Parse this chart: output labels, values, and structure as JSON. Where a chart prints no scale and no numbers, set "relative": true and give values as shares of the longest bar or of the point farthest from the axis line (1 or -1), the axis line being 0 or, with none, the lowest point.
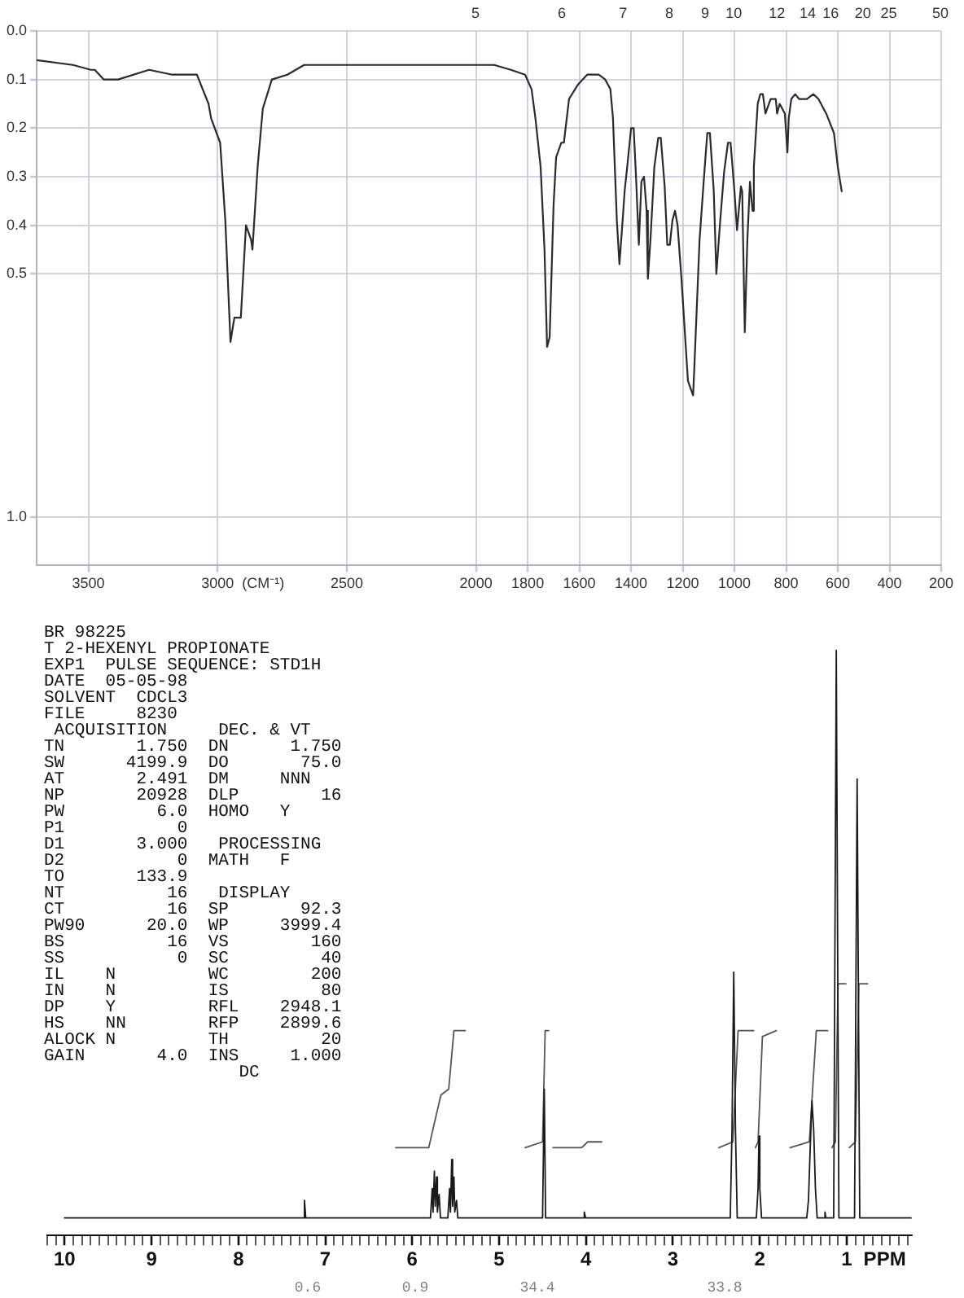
{
  "chart_data": [
    {
      "type": "line",
      "x": [
        3700,
        3560,
        3490,
        3475,
        3440,
        3385,
        3265,
        3175,
        3080,
        3035,
        3025,
        2990,
        2970,
        2950,
        2935,
        2910,
        2890,
        2870,
        2865,
        2845,
        2825,
        2790,
        2730,
        2665,
        2555,
        2385,
        2145,
        2010,
        1930,
        1865,
        1810,
        1785,
        1770,
        1750,
        1735,
        1725,
        1715,
        1700,
        1690,
        1670,
        1660,
        1640,
        1605,
        1570,
        1525,
        1500,
        1480,
        1470,
        1455,
        1445,
        1430,
        1425,
        1415,
        1400,
        1390,
        1380,
        1370,
        1360,
        1350,
        1340,
        1335,
        1325,
        1310,
        1295,
        1285,
        1270,
        1260,
        1250,
        1240,
        1230,
        1220,
        1205,
        1180,
        1160,
        1155,
        1135,
        1115,
        1105,
        1095,
        1080,
        1070,
        1055,
        1040,
        1025,
        1015,
        1000,
        990,
        975,
        970,
        960,
        950,
        940,
        930,
        925,
        910,
        900,
        890,
        880,
        860,
        840,
        835,
        825,
        805,
        795,
        790,
        780,
        765,
        750,
        730,
        720,
        695,
        675,
        645,
        615,
        600,
        585
      ],
      "values": [
        0.06,
        0.07,
        0.08,
        0.08,
        0.1,
        0.1,
        0.08,
        0.09,
        0.09,
        0.15,
        0.18,
        0.23,
        0.39,
        0.64,
        0.59,
        0.59,
        0.4,
        0.43,
        0.45,
        0.28,
        0.16,
        0.1,
        0.09,
        0.07,
        0.07,
        0.07,
        0.07,
        0.07,
        0.07,
        0.08,
        0.09,
        0.12,
        0.18,
        0.28,
        0.45,
        0.65,
        0.63,
        0.36,
        0.26,
        0.23,
        0.23,
        0.14,
        0.11,
        0.09,
        0.09,
        0.1,
        0.12,
        0.18,
        0.39,
        0.48,
        0.37,
        0.33,
        0.28,
        0.2,
        0.2,
        0.31,
        0.44,
        0.31,
        0.3,
        0.37,
        0.51,
        0.43,
        0.28,
        0.22,
        0.22,
        0.32,
        0.44,
        0.44,
        0.39,
        0.37,
        0.4,
        0.51,
        0.72,
        0.75,
        0.69,
        0.43,
        0.28,
        0.21,
        0.21,
        0.33,
        0.5,
        0.39,
        0.29,
        0.23,
        0.23,
        0.33,
        0.41,
        0.32,
        0.33,
        0.62,
        0.43,
        0.31,
        0.37,
        0.28,
        0.15,
        0.13,
        0.13,
        0.17,
        0.14,
        0.14,
        0.17,
        0.15,
        0.17,
        0.25,
        0.18,
        0.14,
        0.13,
        0.14,
        0.14,
        0.14,
        0.13,
        0.14,
        0.17,
        0.21,
        0.28,
        0.33
      ],
      "color": "#2b2b2b",
      "xlim": [
        3700,
        200
      ],
      "xticks": [
        3500,
        3000,
        2500,
        2000,
        1800,
        1600,
        1400,
        1200,
        1000,
        800,
        600,
        400,
        200
      ],
      "ylim": [
        1.1,
        0
      ],
      "yticks": [
        {
          "value": 0,
          "label": "0.0"
        },
        0.1,
        0.2,
        0.3,
        0.4,
        0.5,
        {
          "value": 1,
          "label": "1.0"
        }
      ],
      "xlabel": "(CM⁻¹)",
      "grid": true,
      "annotations": [
        "5",
        "6",
        "7",
        "8",
        "9",
        "10",
        "12",
        "14",
        "16",
        "20",
        "25",
        "50"
      ]
    },
    {
      "type": "line",
      "relative": true,
      "series": [
        {
          "color": "#1a1a1a",
          "x": [
            10.0,
            7.255,
            7.24,
            7.225,
            5.79,
            5.77,
            5.76,
            5.745,
            5.735,
            5.72,
            5.71,
            5.69,
            5.675,
            5.59,
            5.57,
            5.56,
            5.545,
            5.535,
            5.52,
            5.51,
            5.49,
            5.475,
            4.5,
            4.48,
            4.465,
            4.035,
            4.02,
            4.005,
            2.34,
            2.32,
            2.3,
            2.28,
            2.26,
            2.04,
            2.02,
            2.01,
            2.0,
            1.98,
            1.46,
            1.44,
            1.42,
            1.4,
            1.38,
            1.36,
            1.34,
            1.26,
            1.25,
            1.24,
            1.15,
            1.12,
            1.09,
            0.91,
            0.88,
            0.85,
            0.26
          ],
          "values": [
            0.03,
            0.03,
            0.06,
            0.03,
            0.03,
            0.08,
            0.04,
            0.11,
            0.05,
            0.1,
            0.04,
            0.07,
            0.03,
            0.03,
            0.08,
            0.04,
            0.13,
            0.05,
            0.1,
            0.04,
            0.06,
            0.03,
            0.03,
            0.25,
            0.03,
            0.03,
            0.04,
            0.03,
            0.03,
            0.18,
            0.45,
            0.18,
            0.03,
            0.03,
            0.08,
            0.17,
            0.08,
            0.03,
            0.03,
            0.06,
            0.15,
            0.23,
            0.18,
            0.08,
            0.03,
            0.03,
            0.04,
            0.03,
            0.03,
            1,
            0.03,
            0.03,
            0.78,
            0.03,
            0.03
          ]
        },
        {
          "color": "#555555",
          "x": [
            6.19,
            5.81,
            5.67,
            5.58,
            5.52,
            5.39,
            5.0,
            4.7,
            4.5,
            4.47,
            4.43,
            4.41,
            4.38,
            4.05,
            3.98,
            3.82,
            3.0,
            2.47,
            2.31,
            2.25,
            2.07,
            2.06,
            2.05,
            2.02,
            1.97,
            1.81,
            1.7,
            1.65,
            1.43,
            1.35,
            1.22,
            1.19,
            1.17,
            1.13,
            1.1,
            1.01,
            0.99,
            0.97,
            0.9,
            0.86,
            0.76
          ],
          "values": [
            0.15,
            0.15,
            0.24,
            0.25,
            0.35,
            0.35,
            null,
            0.15,
            0.16,
            0.35,
            0.35,
            null,
            0.15,
            0.15,
            0.16,
            0.16,
            null,
            0.15,
            0.16,
            0.35,
            0.35,
            null,
            0.15,
            0.16,
            0.34,
            0.35,
            null,
            0.15,
            0.16,
            0.35,
            0.35,
            null,
            0.15,
            0.16,
            0.43,
            0.43,
            null,
            0.15,
            0.16,
            0.43,
            0.43
          ]
        }
      ],
      "xlim": [
        10.2,
        0.25
      ],
      "xticks": [
        {
          "value": 10.2,
          "label": null
        },
        {
          "value": 10.1,
          "label": null
        },
        10,
        {
          "value": 9.9,
          "label": null
        },
        {
          "value": 9.8,
          "label": null
        },
        {
          "value": 9.7,
          "label": null
        },
        {
          "value": 9.6,
          "label": null
        },
        {
          "value": 9.5,
          "label": null
        },
        {
          "value": 9.4,
          "label": null
        },
        {
          "value": 9.3,
          "label": null
        },
        {
          "value": 9.2,
          "label": null
        },
        {
          "value": 9.1,
          "label": null
        },
        9,
        {
          "value": 8.9,
          "label": null
        },
        {
          "value": 8.8,
          "label": null
        },
        {
          "value": 8.7,
          "label": null
        },
        {
          "value": 8.6,
          "label": null
        },
        {
          "value": 8.5,
          "label": null
        },
        {
          "value": 8.4,
          "label": null
        },
        {
          "value": 8.3,
          "label": null
        },
        {
          "value": 8.2,
          "label": null
        },
        {
          "value": 8.1,
          "label": null
        },
        8,
        {
          "value": 7.9,
          "label": null
        },
        {
          "value": 7.8,
          "label": null
        },
        {
          "value": 7.7,
          "label": null
        },
        {
          "value": 7.6,
          "label": null
        },
        {
          "value": 7.5,
          "label": null
        },
        {
          "value": 7.4,
          "label": null
        },
        {
          "value": 7.3,
          "label": null
        },
        {
          "value": 7.2,
          "label": null
        },
        {
          "value": 7.1,
          "label": null
        },
        7,
        {
          "value": 6.9,
          "label": null
        },
        {
          "value": 6.8,
          "label": null
        },
        {
          "value": 6.7,
          "label": null
        },
        {
          "value": 6.6,
          "label": null
        },
        {
          "value": 6.5,
          "label": null
        },
        {
          "value": 6.4,
          "label": null
        },
        {
          "value": 6.3,
          "label": null
        },
        {
          "value": 6.2,
          "label": null
        },
        {
          "value": 6.1,
          "label": null
        },
        6,
        {
          "value": 5.9,
          "label": null
        },
        {
          "value": 5.8,
          "label": null
        },
        {
          "value": 5.7,
          "label": null
        },
        {
          "value": 5.6,
          "label": null
        },
        {
          "value": 5.5,
          "label": null
        },
        {
          "value": 5.4,
          "label": null
        },
        {
          "value": 5.3,
          "label": null
        },
        {
          "value": 5.2,
          "label": null
        },
        {
          "value": 5.1,
          "label": null
        },
        5,
        {
          "value": 4.9,
          "label": null
        },
        {
          "value": 4.8,
          "label": null
        },
        {
          "value": 4.7,
          "label": null
        },
        {
          "value": 4.6,
          "label": null
        },
        {
          "value": 4.5,
          "label": null
        },
        {
          "value": 4.4,
          "label": null
        },
        {
          "value": 4.3,
          "label": null
        },
        {
          "value": 4.2,
          "label": null
        },
        {
          "value": 4.1,
          "label": null
        },
        4,
        {
          "value": 3.9,
          "label": null
        },
        {
          "value": 3.8,
          "label": null
        },
        {
          "value": 3.7,
          "label": null
        },
        {
          "value": 3.6,
          "label": null
        },
        {
          "value": 3.5,
          "label": null
        },
        {
          "value": 3.4,
          "label": null
        },
        {
          "value": 3.3,
          "label": null
        },
        {
          "value": 3.2,
          "label": null
        },
        {
          "value": 3.1,
          "label": null
        },
        3,
        {
          "value": 2.9,
          "label": null
        },
        {
          "value": 2.8,
          "label": null
        },
        {
          "value": 2.7,
          "label": null
        },
        {
          "value": 2.6,
          "label": null
        },
        {
          "value": 2.5,
          "label": null
        },
        {
          "value": 2.4,
          "label": null
        },
        {
          "value": 2.3,
          "label": null
        },
        {
          "value": 2.2,
          "label": null
        },
        {
          "value": 2.1,
          "label": null
        },
        2,
        {
          "value": 1.9,
          "label": null
        },
        {
          "value": 1.8,
          "label": null
        },
        {
          "value": 1.7,
          "label": null
        },
        {
          "value": 1.6,
          "label": null
        },
        {
          "value": 1.5,
          "label": null
        },
        {
          "value": 1.4,
          "label": null
        },
        {
          "value": 1.3,
          "label": null
        },
        {
          "value": 1.2,
          "label": null
        },
        {
          "value": 1.1,
          "label": null
        },
        1,
        {
          "value": 0.9,
          "label": null
        },
        {
          "value": 0.8,
          "label": null
        },
        {
          "value": 0.7,
          "label": null
        },
        {
          "value": 0.6,
          "label": null
        },
        {
          "value": 0.5,
          "label": null
        },
        {
          "value": 0.4,
          "label": null
        },
        {
          "value": 0.3,
          "label": null
        }
      ],
      "xlabel": "PPM",
      "annotations": [
        "BR 98225",
        "T 2-HEXENYL PROPIONATE",
        "EXP1  PULSE SEQUENCE: STD1H",
        "DATE  05-05-98",
        "SOLVENT  CDCL3",
        "FILE     8230",
        " ACQUISITION     DEC. & VT",
        "TN       1.750  DN      1.750",
        "SW      4199.9  DO       75.0",
        "AT       2.491  DM     NNN",
        "NP       20928  DLP        16",
        "PW         6.0  HOMO   Y",
        "P1           0",
        "D1       3.000   PROCESSING",
        "D2           0  MATH   F",
        "TO       133.9",
        "NT          16   DISPLAY",
        "CT          16  SP       92.3",
        "PW90      20.0  WP     3999.4",
        "BS          16  VS        160",
        "SS           0  SC         40",
        "IL    N         WC        200",
        "IN    N         IS         80",
        "DP    Y         RFL    2948.1",
        "HS    NN        RFP    2899.6",
        "ALOCK N         TH         20",
        "GAIN       4.0  INS     1.000",
        "                   DC",
        "0.6",
        "0.9",
        "34.4",
        "33.8"
      ]
    }
  ]
}
